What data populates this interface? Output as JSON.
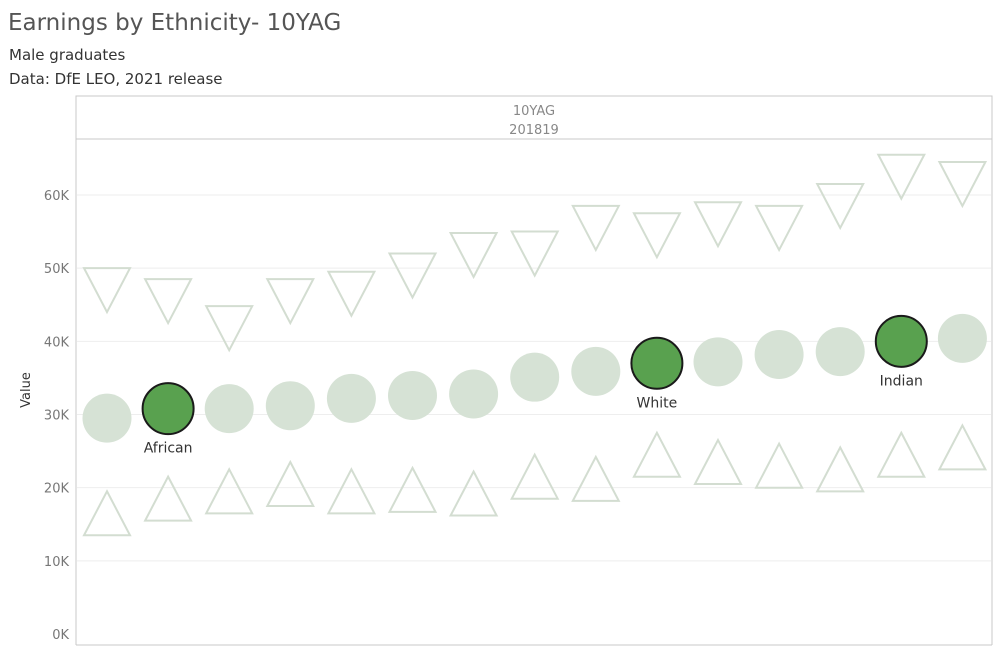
{
  "title": "Earnings by Ethnicity- 10YAG",
  "subtitle": "Male graduates",
  "source": "Data: DfE LEO, 2021 release",
  "chart_data": {
    "type": "scatter",
    "panel_header": [
      "10YAG",
      "201819"
    ],
    "ylabel": "Value",
    "ylim": [
      0,
      67500
    ],
    "y_ticks": [
      0,
      10000,
      20000,
      30000,
      40000,
      50000,
      60000
    ],
    "y_tick_labels": [
      "0K",
      "10K",
      "20K",
      "30K",
      "40K",
      "50K",
      "60K"
    ],
    "grid": true,
    "series": [
      {
        "marker": "circle",
        "values": [
          29500,
          30800,
          30800,
          31200,
          32200,
          32600,
          32800,
          35100,
          35900,
          37000,
          37200,
          38200,
          38600,
          40000,
          40400
        ]
      },
      {
        "marker": "triangle-down",
        "values": [
          47000,
          45500,
          41800,
          45500,
          46500,
          49000,
          51800,
          52000,
          55500,
          54500,
          56000,
          55500,
          58500,
          62500,
          61500
        ]
      },
      {
        "marker": "triangle-up",
        "values": [
          16500,
          18500,
          19500,
          20500,
          19500,
          19700,
          19200,
          21500,
          21200,
          24500,
          23500,
          23000,
          22500,
          24500,
          25500
        ]
      }
    ],
    "highlighted": [
      {
        "index": 1,
        "label": "African",
        "value": 30800
      },
      {
        "index": 9,
        "label": "White",
        "value": 37000
      },
      {
        "index": 13,
        "label": "Indian",
        "value": 40000
      }
    ],
    "colors": {
      "faded": "#d6e2d5",
      "faded_stroke": "#d3ddd1",
      "highlight_fill": "#59a14f",
      "highlight_stroke": "#1a1a1a",
      "grid": "#eeeeee",
      "axis": "#c8c8c8"
    }
  }
}
